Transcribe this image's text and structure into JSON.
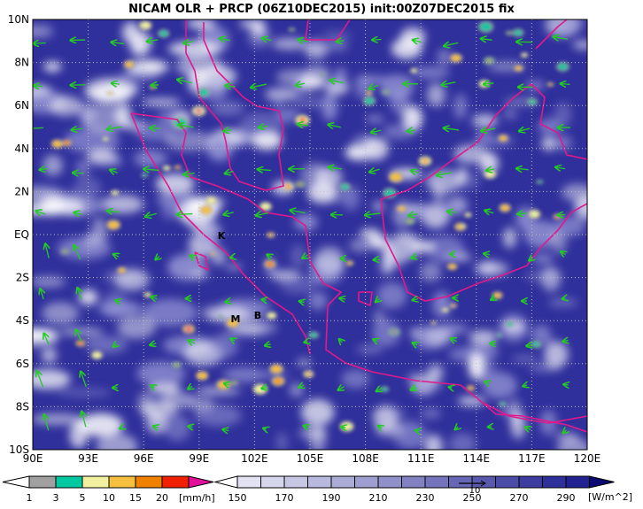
{
  "title": "NICAM OLR + PRCP (06Z10DEC2015) init:00Z07DEC2015 fix",
  "map": {
    "x_labels": [
      "90E",
      "93E",
      "96E",
      "99E",
      "102E",
      "105E",
      "108E",
      "111E",
      "114E",
      "117E",
      "120E"
    ],
    "y_labels": [
      "10N",
      "8N",
      "6N",
      "4N",
      "2N",
      "EQ",
      "2S",
      "4S",
      "6S",
      "8S",
      "10S"
    ],
    "places": [
      "K",
      "M",
      "B"
    ]
  },
  "precip_legend": {
    "labels": [
      1,
      3,
      5,
      10,
      15,
      20
    ],
    "unit": "[mm/h]"
  },
  "olr_legend": {
    "labels": [
      150,
      170,
      190,
      210,
      230,
      250,
      270,
      290
    ],
    "unit": "[W/m^2]"
  },
  "vector_reference": "10"
}
